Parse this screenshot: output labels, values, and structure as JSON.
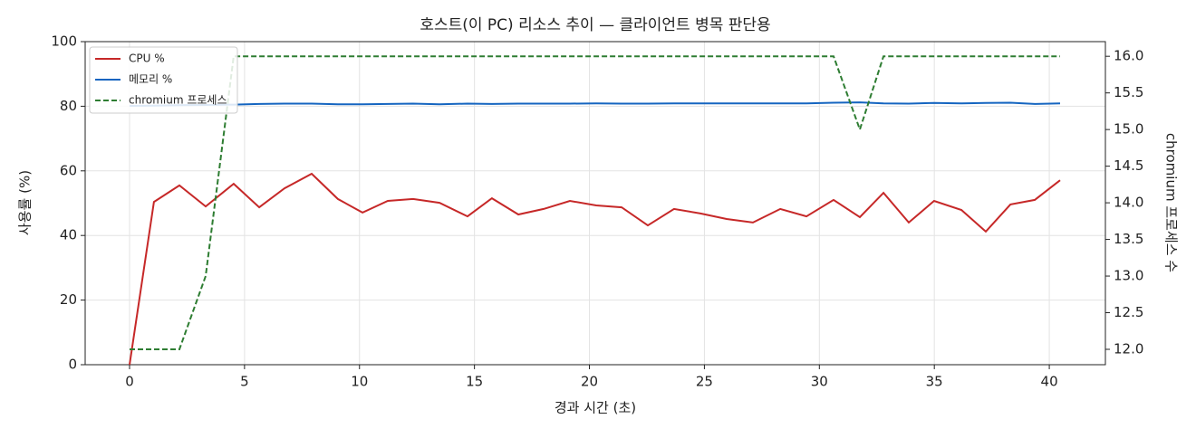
{
  "chart_data": {
    "type": "line",
    "title": "호스트(이 PC) 리소스 추이 — 클라이언트 병목 판단용",
    "x_label": "경과 시간 (초)",
    "y_label": "사용률 (%)",
    "y2_label": "chromium 프로세스 수",
    "x": [
      0,
      1.06,
      2.17,
      3.31,
      4.53,
      5.64,
      6.74,
      7.92,
      9.06,
      10.13,
      11.23,
      12.33,
      13.48,
      14.7,
      15.76,
      16.91,
      18.01,
      19.15,
      20.3,
      21.4,
      22.54,
      23.68,
      24.83,
      25.97,
      27.11,
      28.3,
      29.44,
      30.62,
      31.76,
      32.79,
      33.89,
      34.99,
      36.18,
      37.24,
      38.31,
      39.37,
      40.47
    ],
    "series": [
      {
        "name": "CPU %",
        "color": "#c62828",
        "linestyle": "solid",
        "values": [
          0,
          50.4,
          55.5,
          49,
          56,
          48.7,
          54.6,
          59.1,
          51.3,
          47.1,
          50.7,
          51.3,
          50.1,
          45.9,
          51.5,
          46.5,
          48.2,
          50.7,
          49.3,
          48.7,
          43.1,
          48.2,
          46.8,
          45.1,
          44,
          48.2,
          45.9,
          51,
          45.7,
          53.2,
          44,
          50.7,
          47.9,
          41.2,
          49.6,
          51,
          57.1
        ]
      },
      {
        "name": "메모리 %",
        "color": "#1565c0",
        "linestyle": "solid",
        "values": [
          80.1,
          80.2,
          80.3,
          80.4,
          80.5,
          80.7,
          80.8,
          80.8,
          80.6,
          80.6,
          80.7,
          80.8,
          80.6,
          80.8,
          80.7,
          80.8,
          80.8,
          80.8,
          80.9,
          80.8,
          80.8,
          80.9,
          80.9,
          80.9,
          80.9,
          80.9,
          80.9,
          81.1,
          81.2,
          80.9,
          80.8,
          81,
          80.9,
          81,
          81.1,
          80.7,
          80.9
        ]
      },
      {
        "name": "chromium 프로세스",
        "color": "#2e7d32",
        "linestyle": "dashed",
        "axis": "y2",
        "values": [
          12,
          12,
          12,
          13,
          16,
          16,
          16,
          16,
          16,
          16,
          16,
          16,
          16,
          16,
          16,
          16,
          16,
          16,
          16,
          16,
          16,
          16,
          16,
          16,
          16,
          16,
          16,
          16,
          15,
          16,
          16,
          16,
          16,
          16,
          16,
          16,
          16
        ]
      }
    ],
    "xlim": [
      -1.93,
      42.44
    ],
    "xticks": [
      0,
      5,
      10,
      15,
      20,
      25,
      30,
      35,
      40
    ],
    "ylim": [
      0,
      100
    ],
    "yticks": [
      0,
      20,
      40,
      60,
      80,
      100
    ],
    "y2lim": [
      11.79,
      16.2
    ],
    "y2ticks": [
      {
        "value": 12,
        "label": "12.0"
      },
      12.5,
      {
        "value": 13,
        "label": "13.0"
      },
      13.5,
      {
        "value": 14,
        "label": "14.0"
      },
      14.5,
      {
        "value": 15,
        "label": "15.0"
      },
      15.5,
      {
        "value": 16,
        "label": "16.0"
      }
    ],
    "grid": true,
    "legend": "upper-left"
  }
}
